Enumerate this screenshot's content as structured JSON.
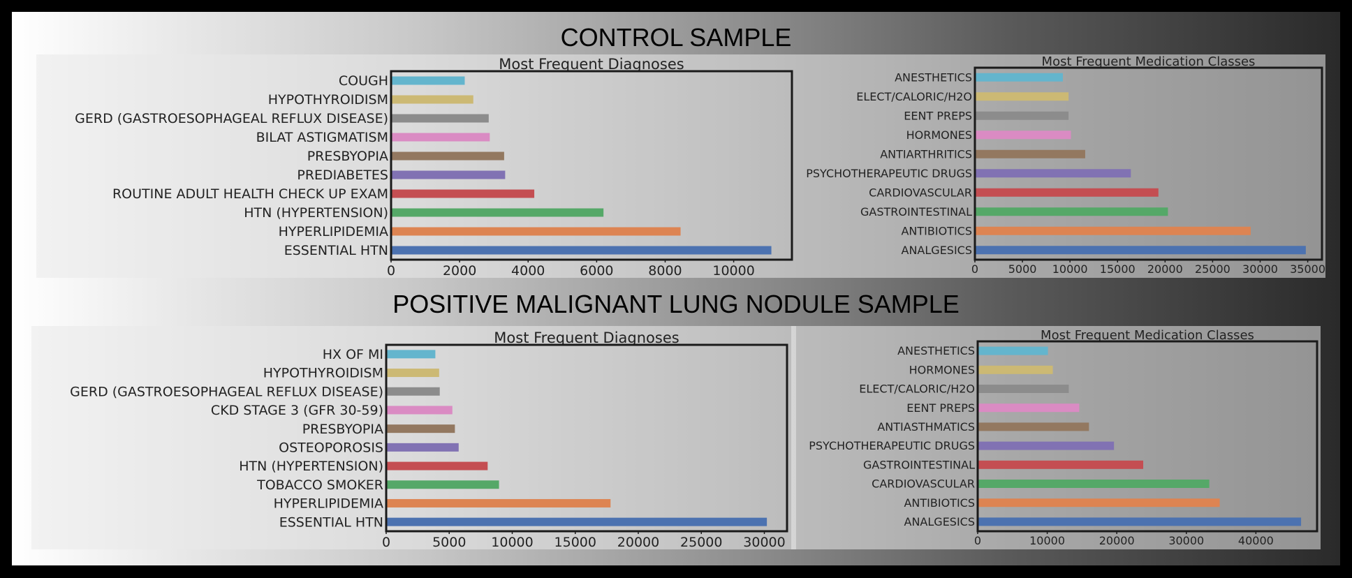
{
  "sections": [
    {
      "title": "CONTROL SAMPLE",
      "charts": [
        {
          "type": "bar",
          "orientation": "horizontal",
          "title": "Most Frequent Diagnoses",
          "categories": [
            "ESSENTIAL HTN",
            "HYPERLIPIDEMIA",
            "HTN (HYPERTENSION)",
            "ROUTINE ADULT HEALTH CHECK UP EXAM",
            "PREDIABETES",
            "PRESBYOPIA",
            "BILAT ASTIGMATISM",
            "GERD (GASTROESOPHAGEAL REFLUX DISEASE)",
            "HYPOTHYROIDISM",
            "COUGH"
          ],
          "values": [
            11100,
            8450,
            6200,
            4180,
            3330,
            3300,
            2880,
            2850,
            2400,
            2150
          ],
          "xlim": [
            0,
            11700
          ],
          "xticks": [
            0,
            2000,
            4000,
            6000,
            8000,
            10000
          ],
          "colors": [
            "#4c72b0",
            "#dd8452",
            "#55a868",
            "#c44e52",
            "#8172b3",
            "#937860",
            "#da8bc3",
            "#8c8c8c",
            "#ccb974",
            "#64b5cd"
          ]
        },
        {
          "type": "bar",
          "orientation": "horizontal",
          "title": "Most Frequent Medication Classes",
          "categories": [
            "ANALGESICS",
            "ANTIBIOTICS",
            "GASTROINTESTINAL",
            "CARDIOVASCULAR",
            "PSYCHOTHERAPEUTIC DRUGS",
            "ANTIARTHRITICS",
            "HORMONES",
            "EENT PREPS",
            "ELECT/CALORIC/H2O",
            "ANESTHETICS"
          ],
          "values": [
            34800,
            29000,
            20300,
            19300,
            16400,
            11600,
            10100,
            9850,
            9850,
            9250
          ],
          "xlim": [
            0,
            36500
          ],
          "xticks": [
            0,
            5000,
            10000,
            15000,
            20000,
            25000,
            30000,
            35000
          ],
          "colors": [
            "#4c72b0",
            "#dd8452",
            "#55a868",
            "#c44e52",
            "#8172b3",
            "#937860",
            "#da8bc3",
            "#8c8c8c",
            "#ccb974",
            "#64b5cd"
          ]
        }
      ]
    },
    {
      "title": "POSITIVE MALIGNANT LUNG NODULE SAMPLE",
      "charts": [
        {
          "type": "bar",
          "orientation": "horizontal",
          "title": "Most Frequent Diagnoses",
          "categories": [
            "ESSENTIAL HTN",
            "HYPERLIPIDEMIA",
            "TOBACCO SMOKER",
            "HTN (HYPERTENSION)",
            "OSTEOPOROSIS",
            "PRESBYOPIA",
            "CKD STAGE 3 (GFR 30-59)",
            "GERD (GASTROESOPHAGEAL REFLUX DISEASE)",
            "HYPOTHYROIDISM",
            "HX OF MI"
          ],
          "values": [
            30200,
            17800,
            8950,
            8050,
            5750,
            5450,
            5250,
            4250,
            4200,
            3900
          ],
          "xlim": [
            0,
            31800
          ],
          "xticks": [
            0,
            5000,
            10000,
            15000,
            20000,
            25000,
            30000
          ],
          "colors": [
            "#4c72b0",
            "#dd8452",
            "#55a868",
            "#c44e52",
            "#8172b3",
            "#937860",
            "#da8bc3",
            "#8c8c8c",
            "#ccb974",
            "#64b5cd"
          ]
        },
        {
          "type": "bar",
          "orientation": "horizontal",
          "title": "Most Frequent Medication Classes",
          "categories": [
            "ANALGESICS",
            "ANTIBIOTICS",
            "CARDIOVASCULAR",
            "GASTROINTESTINAL",
            "PSYCHOTHERAPEUTIC DRUGS",
            "ANTIASTHMATICS",
            "EENT PREPS",
            "ELECT/CALORIC/H2O",
            "HORMONES",
            "ANESTHETICS"
          ],
          "values": [
            46500,
            34800,
            33300,
            23800,
            19600,
            16000,
            14600,
            13100,
            10800,
            10100
          ],
          "xlim": [
            0,
            48800
          ],
          "xticks": [
            0,
            10000,
            20000,
            30000,
            40000
          ],
          "colors": [
            "#4c72b0",
            "#dd8452",
            "#55a868",
            "#c44e52",
            "#8172b3",
            "#937860",
            "#da8bc3",
            "#8c8c8c",
            "#ccb974",
            "#64b5cd"
          ]
        }
      ]
    }
  ]
}
